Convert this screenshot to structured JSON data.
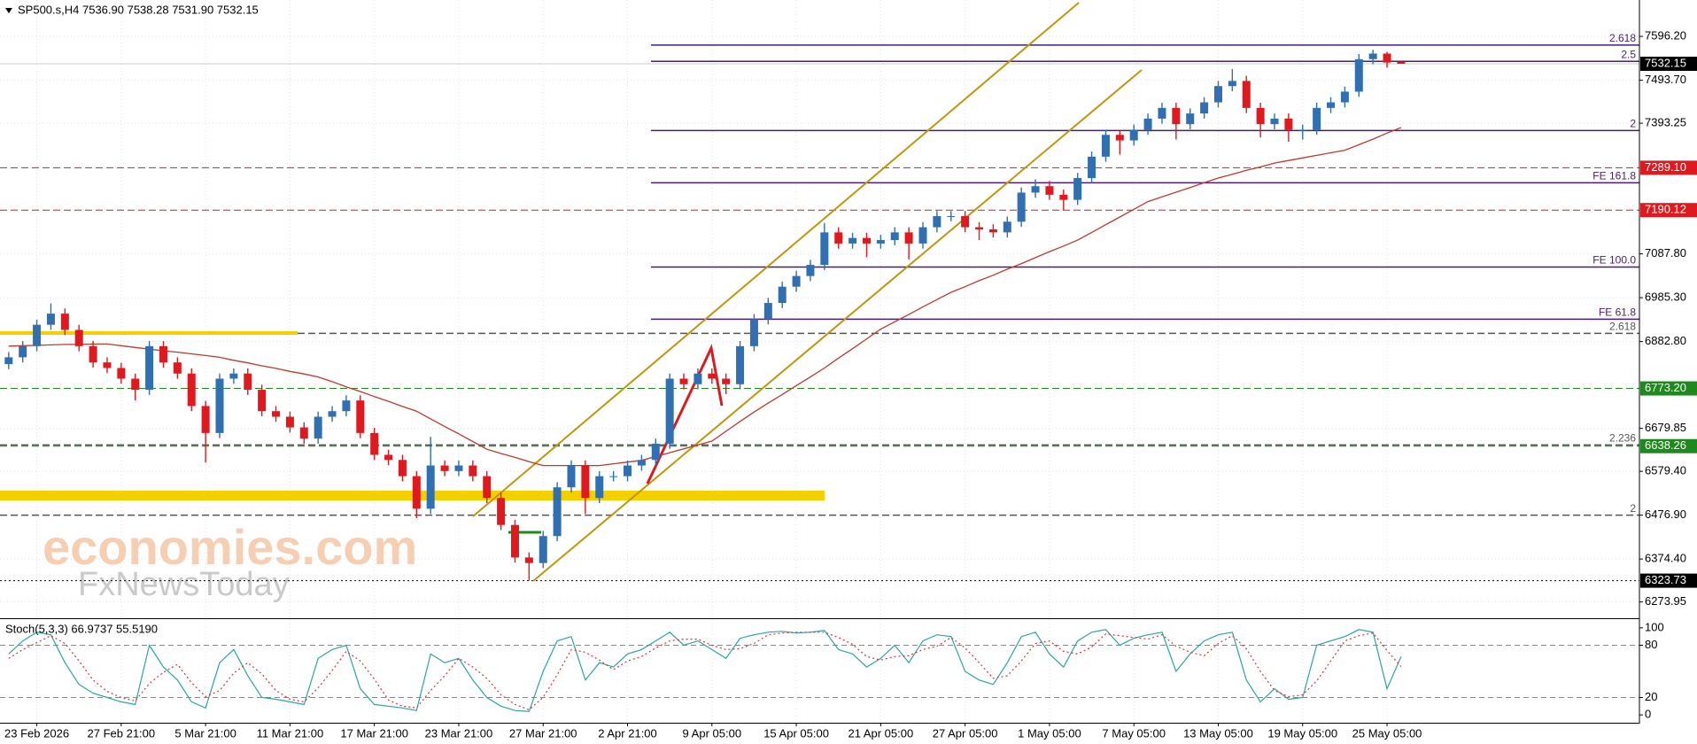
{
  "chart_data": {
    "type": "candlestick",
    "header": "SP500.s,H4  7536.90 7538.28 7531.90 7532.15",
    "watermark": [
      "economies.com",
      "FxNewsToday"
    ],
    "ylim": [
      6238,
      7644
    ],
    "yticks": [
      {
        "value": 7596.2,
        "label": "7596.20"
      },
      {
        "value": 7493.7,
        "label": "7493.70"
      },
      {
        "value": 7393.25,
        "label": "7393.25"
      },
      {
        "value": 7087.8,
        "label": "7087.80"
      },
      {
        "value": 6985.3,
        "label": "6985.30"
      },
      {
        "value": 6882.8,
        "label": "6882.80"
      },
      {
        "value": 6679.85,
        "label": "6679.85"
      },
      {
        "value": 6579.4,
        "label": "6579.40"
      },
      {
        "value": 6476.9,
        "label": "6476.90"
      },
      {
        "value": 6374.4,
        "label": "6374.40"
      },
      {
        "value": 6273.95,
        "label": "6273.95"
      }
    ],
    "xticks": [
      {
        "value": 2,
        "label": "23 Feb 2026"
      },
      {
        "value": 8,
        "label": "27 Feb 21:00"
      },
      {
        "value": 14,
        "label": "5 Mar 21:00"
      },
      {
        "value": 20,
        "label": "11 Mar 21:00"
      },
      {
        "value": 26,
        "label": "17 Mar 21:00"
      },
      {
        "value": 32,
        "label": "23 Mar 21:00"
      },
      {
        "value": 38,
        "label": "27 Mar 21:00"
      },
      {
        "value": 44,
        "label": "2 Apr 21:00"
      },
      {
        "value": 50,
        "label": "9 Apr 05:00"
      },
      {
        "value": 56,
        "label": "15 Apr 05:00"
      },
      {
        "value": 62,
        "label": "21 Apr 05:00"
      },
      {
        "value": 68,
        "label": "27 Apr 05:00"
      },
      {
        "value": 74,
        "label": "1 May 05:00"
      },
      {
        "value": 80,
        "label": "7 May 05:00"
      },
      {
        "value": 86,
        "label": "13 May 05:00"
      },
      {
        "value": 92,
        "label": "19 May 05:00"
      },
      {
        "value": 98,
        "label": "25 May 05:00"
      }
    ],
    "grid": true,
    "up_color": "#2f6fb2",
    "down_color": "#e0191e",
    "open": [
      6830,
      6846,
      6872,
      6922,
      6948,
      6910,
      6872,
      6834,
      6821,
      6796,
      6770,
      6872,
      6834,
      6808,
      6732,
      6669,
      6796,
      6808,
      6770,
      6720,
      6707,
      6682,
      6656,
      6707,
      6720,
      6745,
      6669,
      6618,
      6606,
      6568,
      6492,
      6593,
      6580,
      6593,
      6568,
      6517,
      6454,
      6378,
      6365,
      6428,
      6542,
      6593,
      6517,
      6568,
      6568,
      6593,
      6606,
      6644,
      6796,
      6783,
      6808,
      6796,
      6783,
      6872,
      6935,
      6973,
      7011,
      7036,
      7062,
      7138,
      7112,
      7125,
      7112,
      7120,
      7138,
      7112,
      7150,
      7176,
      7176,
      7150,
      7145,
      7138,
      7163,
      7231,
      7246,
      7226,
      7214,
      7265,
      7315,
      7366,
      7353,
      7378,
      7404,
      7429,
      7391,
      7416,
      7442,
      7480,
      7492,
      7429,
      7391,
      7404,
      7378,
      7378,
      7429,
      7442,
      7467,
      7543,
      7556,
      7536.9
    ],
    "high": [
      6858,
      6884,
      6934,
      6972,
      6960,
      6922,
      6884,
      6846,
      6833,
      6808,
      6884,
      6884,
      6846,
      6820,
      6744,
      6808,
      6820,
      6820,
      6782,
      6732,
      6719,
      6694,
      6719,
      6732,
      6757,
      6757,
      6681,
      6630,
      6618,
      6580,
      6660,
      6605,
      6605,
      6605,
      6580,
      6529,
      6466,
      6390,
      6440,
      6554,
      6605,
      6605,
      6580,
      6580,
      6605,
      6618,
      6656,
      6808,
      6808,
      6820,
      6820,
      6808,
      6884,
      6947,
      6985,
      7023,
      7048,
      7074,
      7160,
      7150,
      7137,
      7137,
      7132,
      7150,
      7150,
      7162,
      7188,
      7188,
      7188,
      7162,
      7157,
      7175,
      7243,
      7262,
      7258,
      7238,
      7277,
      7327,
      7378,
      7378,
      7390,
      7416,
      7441,
      7441,
      7428,
      7454,
      7492,
      7520,
      7504,
      7441,
      7416,
      7416,
      7390,
      7441,
      7454,
      7479,
      7555,
      7565,
      7560,
      7538.28
    ],
    "low": [
      6818,
      6834,
      6860,
      6910,
      6898,
      6860,
      6822,
      6809,
      6784,
      6745,
      6758,
      6822,
      6796,
      6720,
      6600,
      6657,
      6784,
      6758,
      6708,
      6695,
      6670,
      6644,
      6644,
      6695,
      6708,
      6657,
      6606,
      6594,
      6556,
      6470,
      6480,
      6568,
      6568,
      6556,
      6505,
      6442,
      6366,
      6324,
      6353,
      6416,
      6530,
      6480,
      6505,
      6556,
      6556,
      6581,
      6594,
      6632,
      6771,
      6771,
      6784,
      6760,
      6771,
      6860,
      6923,
      6961,
      6999,
      7024,
      7050,
      7100,
      7100,
      7080,
      7100,
      7108,
      7075,
      7100,
      7138,
      7164,
      7138,
      7120,
      7126,
      7126,
      7151,
      7219,
      7214,
      7190,
      7202,
      7253,
      7303,
      7320,
      7341,
      7366,
      7392,
      7355,
      7379,
      7404,
      7430,
      7468,
      7417,
      7360,
      7379,
      7350,
      7355,
      7366,
      7417,
      7430,
      7455,
      7531,
      7523,
      7531.9
    ],
    "close": [
      6846,
      6872,
      6922,
      6948,
      6910,
      6872,
      6834,
      6821,
      6796,
      6770,
      6872,
      6834,
      6808,
      6732,
      6669,
      6796,
      6808,
      6770,
      6720,
      6707,
      6682,
      6656,
      6707,
      6720,
      6745,
      6669,
      6618,
      6606,
      6568,
      6492,
      6593,
      6580,
      6593,
      6568,
      6517,
      6454,
      6378,
      6365,
      6428,
      6542,
      6593,
      6517,
      6568,
      6568,
      6593,
      6606,
      6644,
      6796,
      6783,
      6808,
      6796,
      6783,
      6872,
      6935,
      6973,
      7011,
      7036,
      7062,
      7138,
      7112,
      7125,
      7112,
      7120,
      7138,
      7112,
      7150,
      7176,
      7176,
      7150,
      7145,
      7138,
      7163,
      7231,
      7246,
      7226,
      7214,
      7265,
      7315,
      7366,
      7353,
      7378,
      7404,
      7429,
      7391,
      7416,
      7442,
      7480,
      7492,
      7429,
      7391,
      7404,
      7378,
      7378,
      7429,
      7442,
      7467,
      7543,
      7556,
      7535,
      7532.15
    ],
    "ma": {
      "color": "#c0392b",
      "values": [
        6872,
        6873,
        6874,
        6875,
        6876,
        6876,
        6877,
        6877,
        6873,
        6869,
        6865,
        6861,
        6858,
        6854,
        6850,
        6846,
        6839,
        6833,
        6826,
        6820,
        6813,
        6807,
        6800,
        6789,
        6777,
        6766,
        6754,
        6743,
        6731,
        6720,
        6702,
        6684,
        6667,
        6649,
        6631,
        6621,
        6612,
        6602,
        6593,
        6593,
        6593,
        6593,
        6593,
        6597,
        6601,
        6605,
        6614,
        6623,
        6632,
        6641,
        6650,
        6673,
        6696,
        6718,
        6739,
        6759,
        6780,
        6800,
        6821,
        6844,
        6866,
        6889,
        6912,
        6929,
        6946,
        6964,
        6981,
        6998,
        7011,
        7025,
        7038,
        7052,
        7065,
        7079,
        7093,
        7106,
        7120,
        7138,
        7156,
        7174,
        7192,
        7210,
        7221,
        7232,
        7243,
        7254,
        7265,
        7274,
        7283,
        7291,
        7300,
        7306,
        7312,
        7318,
        7324,
        7330,
        7343,
        7356,
        7370,
        7383
      ]
    },
    "levels": [
      {
        "value": 7532.15,
        "label": "7532.15",
        "color": "#000000",
        "style": "current"
      },
      {
        "value": 7289.1,
        "label": "7289.10",
        "color": "#e0191e",
        "style": "dashed"
      },
      {
        "value": 7190.12,
        "label": "7190.12",
        "color": "#e0191e",
        "style": "dashed"
      },
      {
        "value": 6773.2,
        "label": "6773.20",
        "color": "#1e8a1e",
        "style": "dashed"
      },
      {
        "value": 6638.26,
        "label": "6638.26",
        "color": "#1e8a1e",
        "style": "dashed"
      },
      {
        "value": 6323.73,
        "label": "6323.73",
        "color": "#000000",
        "style": "dotted"
      }
    ],
    "fibonacci": [
      {
        "label": "2.618",
        "value": 7576,
        "color": "#4b1a7a",
        "style": "solid"
      },
      {
        "label": "2.5",
        "value": 7538,
        "color": "#4b1a7a",
        "style": "solid"
      },
      {
        "label": "2",
        "value": 7376,
        "color": "#4b1a7a",
        "style": "solid"
      },
      {
        "label": "FE 161.8",
        "value": 7254,
        "color": "#4b1a7a",
        "style": "solid"
      },
      {
        "label": "FE 100.0",
        "value": 7057,
        "color": "#4b1a7a",
        "style": "solid"
      },
      {
        "label": "FE 61.8",
        "value": 6935,
        "color": "#4b1a7a",
        "style": "solid"
      },
      {
        "label": "2.618",
        "value": 6902,
        "color": "#555555",
        "style": "dashed"
      },
      {
        "label": "2.236",
        "value": 6641,
        "color": "#555555",
        "style": "dashed"
      },
      {
        "label": "2",
        "value": 6477,
        "color": "#555555",
        "style": "dashed"
      }
    ],
    "stochastic": {
      "type": "line",
      "title": "Stoch(5,3,3) 66.9737 55.5190",
      "ylim": [
        -9,
        109
      ],
      "yticks": [
        100,
        80,
        20,
        0
      ],
      "levels": [
        80,
        20
      ],
      "series": [
        {
          "color": "#2aa5a5",
          "style": "solid",
          "values": [
            70,
            85,
            95,
            92,
            60,
            35,
            25,
            20,
            15,
            12,
            80,
            55,
            40,
            15,
            8,
            60,
            75,
            45,
            20,
            18,
            15,
            12,
            65,
            75,
            80,
            30,
            12,
            10,
            8,
            5,
            70,
            60,
            65,
            40,
            20,
            10,
            5,
            4,
            50,
            85,
            90,
            40,
            60,
            55,
            70,
            75,
            85,
            95,
            80,
            85,
            75,
            65,
            88,
            92,
            95,
            96,
            94,
            95,
            97,
            75,
            70,
            55,
            65,
            80,
            60,
            85,
            92,
            90,
            50,
            40,
            35,
            60,
            90,
            95,
            70,
            55,
            85,
            95,
            98,
            80,
            88,
            92,
            95,
            50,
            70,
            85,
            92,
            95,
            40,
            15,
            30,
            18,
            20,
            80,
            85,
            90,
            98,
            95,
            30,
            66.9737
          ]
        },
        {
          "color": "#e03030",
          "style": "dotted",
          "values": [
            65,
            75,
            83,
            91,
            82,
            62,
            40,
            27,
            20,
            16,
            36,
            49,
            58,
            37,
            21,
            28,
            48,
            60,
            47,
            28,
            18,
            15,
            31,
            51,
            73,
            62,
            41,
            17,
            10,
            8,
            28,
            45,
            65,
            55,
            42,
            23,
            12,
            6,
            20,
            46,
            75,
            72,
            63,
            52,
            62,
            67,
            77,
            85,
            87,
            87,
            80,
            75,
            76,
            82,
            92,
            94,
            95,
            95,
            95,
            89,
            81,
            67,
            63,
            67,
            68,
            75,
            79,
            89,
            77,
            60,
            42,
            45,
            62,
            82,
            85,
            73,
            70,
            78,
            93,
            91,
            89,
            87,
            92,
            79,
            72,
            68,
            82,
            91,
            76,
            50,
            28,
            21,
            23,
            39,
            62,
            85,
            91,
            94,
            74,
            55.519
          ]
        }
      ]
    }
  }
}
